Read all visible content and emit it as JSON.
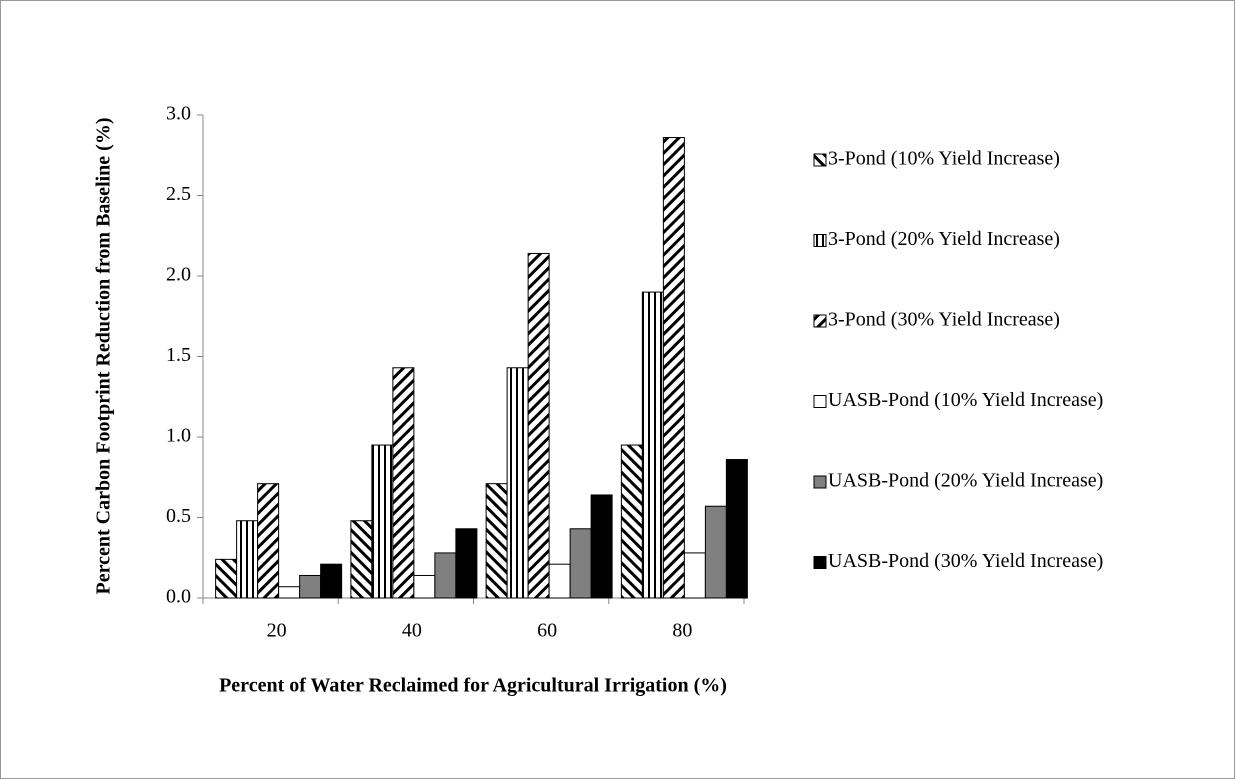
{
  "chart_data": {
    "type": "bar",
    "xlabel": "Percent of Water Reclaimed for Agricultural Irrigation (%)",
    "ylabel": "Percent Carbon Footprint Reduction from Baseline (%)",
    "categories": [
      "20",
      "40",
      "60",
      "80"
    ],
    "series": [
      {
        "name": "3-Pond (10% Yield Increase)",
        "color": "#ffffff",
        "pattern": "backslash",
        "values": [
          0.24,
          0.48,
          0.71,
          0.95
        ]
      },
      {
        "name": "3-Pond (20% Yield Increase)",
        "color": "#ffffff",
        "pattern": "vertical",
        "values": [
          0.48,
          0.95,
          1.43,
          1.9
        ]
      },
      {
        "name": "3-Pond (30% Yield Increase)",
        "color": "#ffffff",
        "pattern": "slash",
        "values": [
          0.71,
          1.43,
          2.14,
          2.86
        ]
      },
      {
        "name": "UASB-Pond (10% Yield Increase)",
        "color": "#ffffff",
        "values": [
          0.07,
          0.14,
          0.21,
          0.28
        ]
      },
      {
        "name": "UASB-Pond (20% Yield Increase)",
        "color": "#808080",
        "values": [
          0.14,
          0.28,
          0.43,
          0.57
        ]
      },
      {
        "name": "UASB-Pond (30% Yield Increase)",
        "color": "#000000",
        "values": [
          0.21,
          0.43,
          0.64,
          0.86
        ]
      }
    ],
    "ylim": [
      0,
      3
    ],
    "yticks": [
      {
        "value": 0,
        "label": "0.0"
      },
      0.5,
      {
        "value": 1,
        "label": "1.0"
      },
      1.5,
      {
        "value": 2,
        "label": "2.0"
      },
      2.5,
      {
        "value": 3,
        "label": "3.0"
      }
    ],
    "grid": false,
    "legend": "right"
  }
}
